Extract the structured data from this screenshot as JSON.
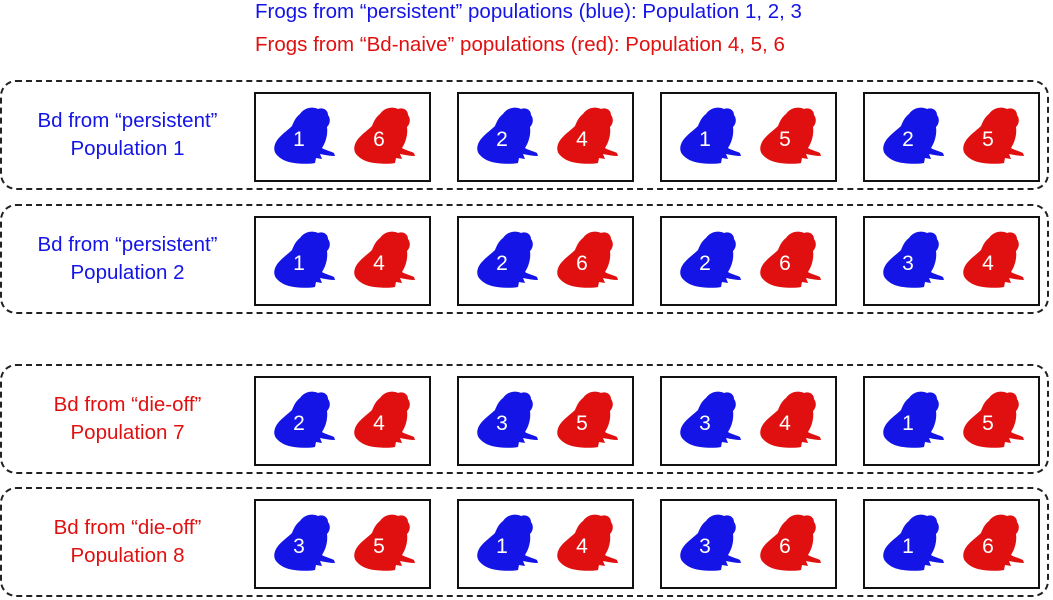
{
  "legend": {
    "blue_line": "Frogs from “persistent” populations (blue): Population 1, 2, 3",
    "red_line": "Frogs from “Bd-naive” populations (red): Population 4, 5, 6"
  },
  "colors": {
    "blue": "#1414e6",
    "red": "#e01010",
    "border": "#222222"
  },
  "groups": [
    {
      "label_line1": "Bd from “persistent”",
      "label_line2": "Population 1",
      "label_color": "blue",
      "tanks": [
        {
          "blue_frog": "1",
          "red_frog": "6"
        },
        {
          "blue_frog": "2",
          "red_frog": "4"
        },
        {
          "blue_frog": "1",
          "red_frog": "5"
        },
        {
          "blue_frog": "2",
          "red_frog": "5"
        }
      ]
    },
    {
      "label_line1": "Bd from “persistent”",
      "label_line2": "Population 2",
      "label_color": "blue",
      "tanks": [
        {
          "blue_frog": "1",
          "red_frog": "4"
        },
        {
          "blue_frog": "2",
          "red_frog": "6"
        },
        {
          "blue_frog": "2",
          "red_frog": "6"
        },
        {
          "blue_frog": "3",
          "red_frog": "4"
        }
      ]
    },
    {
      "label_line1": "Bd from “die-off”",
      "label_line2": "Population 7",
      "label_color": "red",
      "tanks": [
        {
          "blue_frog": "2",
          "red_frog": "4"
        },
        {
          "blue_frog": "3",
          "red_frog": "5"
        },
        {
          "blue_frog": "3",
          "red_frog": "4"
        },
        {
          "blue_frog": "1",
          "red_frog": "5"
        }
      ]
    },
    {
      "label_line1": "Bd from “die-off”",
      "label_line2": "Population 8",
      "label_color": "red",
      "tanks": [
        {
          "blue_frog": "3",
          "red_frog": "5"
        },
        {
          "blue_frog": "1",
          "red_frog": "4"
        },
        {
          "blue_frog": "3",
          "red_frog": "6"
        },
        {
          "blue_frog": "1",
          "red_frog": "6"
        }
      ]
    }
  ]
}
